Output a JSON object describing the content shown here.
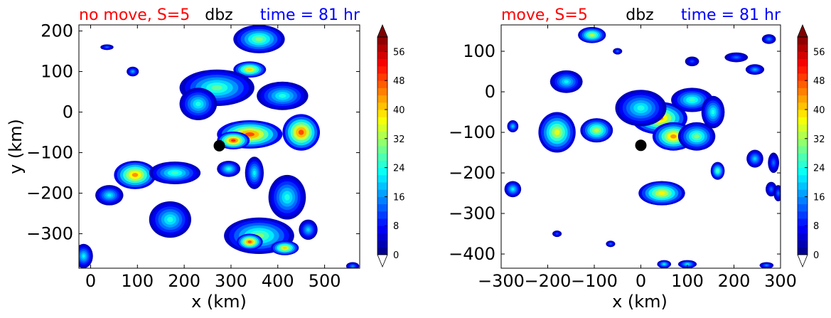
{
  "chart_data": [
    {
      "type": "heatmap",
      "title_left": "no move, S=5",
      "title_center": "dbz",
      "title_right": "time = 81 hr",
      "title_left_color": "#ff0000",
      "title_center_color": "#000000",
      "title_right_color": "#0000ff",
      "xlabel": "x (km)",
      "ylabel": "y (km)",
      "xlim": [
        -25,
        575
      ],
      "ylim": [
        -385,
        215
      ],
      "xticks": [
        0,
        100,
        200,
        300,
        400,
        500
      ],
      "xtick_labels": [
        "0",
        "100",
        "200",
        "300",
        "400",
        "500"
      ],
      "yticks": [
        -300,
        -200,
        -100,
        0,
        100,
        200
      ],
      "ytick_labels": [
        "−300",
        "−200",
        "−100",
        "0",
        "100",
        "200"
      ],
      "marker": {
        "x": 275,
        "y": -83,
        "color": "#000000"
      },
      "cells": [
        {
          "x": 340,
          "y": -55,
          "rx": 70,
          "ry": 35,
          "peak": 48
        },
        {
          "x": 305,
          "y": -70,
          "rx": 35,
          "ry": 22,
          "peak": 50
        },
        {
          "x": 340,
          "y": 105,
          "rx": 35,
          "ry": 20,
          "peak": 40
        },
        {
          "x": 360,
          "y": 180,
          "rx": 55,
          "ry": 35,
          "peak": 30
        },
        {
          "x": 270,
          "y": 60,
          "rx": 80,
          "ry": 45,
          "peak": 28
        },
        {
          "x": 410,
          "y": 40,
          "rx": 55,
          "ry": 35,
          "peak": 24
        },
        {
          "x": 230,
          "y": 20,
          "rx": 40,
          "ry": 40,
          "peak": 24
        },
        {
          "x": 450,
          "y": -50,
          "rx": 40,
          "ry": 45,
          "peak": 48
        },
        {
          "x": 350,
          "y": -150,
          "rx": 20,
          "ry": 40,
          "peak": 22
        },
        {
          "x": 295,
          "y": -140,
          "rx": 25,
          "ry": 20,
          "peak": 24
        },
        {
          "x": 90,
          "y": 100,
          "rx": 13,
          "ry": 12,
          "peak": 18
        },
        {
          "x": 35,
          "y": 160,
          "rx": 14,
          "ry": 7,
          "peak": 14
        },
        {
          "x": 95,
          "y": -155,
          "rx": 45,
          "ry": 35,
          "peak": 44
        },
        {
          "x": 180,
          "y": -150,
          "rx": 55,
          "ry": 28,
          "peak": 26
        },
        {
          "x": 40,
          "y": -205,
          "rx": 30,
          "ry": 25,
          "peak": 22
        },
        {
          "x": 170,
          "y": -265,
          "rx": 45,
          "ry": 45,
          "peak": 24
        },
        {
          "x": 420,
          "y": -210,
          "rx": 40,
          "ry": 55,
          "peak": 24
        },
        {
          "x": 360,
          "y": -305,
          "rx": 75,
          "ry": 45,
          "peak": 30
        },
        {
          "x": 340,
          "y": -320,
          "rx": 28,
          "ry": 20,
          "peak": 48
        },
        {
          "x": 415,
          "y": -335,
          "rx": 30,
          "ry": 18,
          "peak": 40
        },
        {
          "x": 465,
          "y": -290,
          "rx": 20,
          "ry": 25,
          "peak": 20
        },
        {
          "x": -15,
          "y": -355,
          "rx": 20,
          "ry": 30,
          "peak": 22
        },
        {
          "x": 560,
          "y": -380,
          "rx": 14,
          "ry": 10,
          "peak": 16
        }
      ],
      "colorbar": {
        "min": 0,
        "max": 60,
        "step": 2,
        "extend": "both",
        "ticks": [
          "0",
          "8",
          "16",
          "24",
          "32",
          "40",
          "48",
          "56"
        ]
      }
    },
    {
      "type": "heatmap",
      "title_left": "move, S=5",
      "title_center": "dbz",
      "title_right": "time = 81 hr",
      "title_left_color": "#ff0000",
      "title_center_color": "#000000",
      "title_right_color": "#0000ff",
      "xlabel": "x (km)",
      "ylabel": "",
      "xlim": [
        -300,
        300
      ],
      "ylim": [
        -435,
        165
      ],
      "xticks": [
        -300,
        -200,
        -100,
        0,
        100,
        200,
        300
      ],
      "xtick_labels": [
        "−300",
        "−200",
        "−100",
        "0",
        "100",
        "200",
        "300"
      ],
      "yticks": [
        -400,
        -300,
        -200,
        -100,
        0,
        100
      ],
      "ytick_labels": [
        "−400",
        "−300",
        "−200",
        "−100",
        "0",
        "100"
      ],
      "marker": {
        "x": 0,
        "y": -132,
        "color": "#000000"
      },
      "cells": [
        {
          "x": 40,
          "y": -65,
          "rx": 60,
          "ry": 40,
          "peak": 44
        },
        {
          "x": 10,
          "y": -55,
          "rx": 35,
          "ry": 25,
          "peak": 46
        },
        {
          "x": 70,
          "y": -110,
          "rx": 45,
          "ry": 35,
          "peak": 44
        },
        {
          "x": 120,
          "y": -110,
          "rx": 40,
          "ry": 35,
          "peak": 30
        },
        {
          "x": 110,
          "y": -20,
          "rx": 45,
          "ry": 30,
          "peak": 26
        },
        {
          "x": 155,
          "y": -50,
          "rx": 25,
          "ry": 40,
          "peak": 24
        },
        {
          "x": 0,
          "y": -40,
          "rx": 55,
          "ry": 45,
          "peak": 24
        },
        {
          "x": -180,
          "y": -100,
          "rx": 40,
          "ry": 50,
          "peak": 36
        },
        {
          "x": -95,
          "y": -95,
          "rx": 35,
          "ry": 30,
          "peak": 34
        },
        {
          "x": -160,
          "y": 25,
          "rx": 35,
          "ry": 28,
          "peak": 22
        },
        {
          "x": -105,
          "y": 140,
          "rx": 30,
          "ry": 20,
          "peak": 34
        },
        {
          "x": -50,
          "y": 100,
          "rx": 10,
          "ry": 8,
          "peak": 14
        },
        {
          "x": -275,
          "y": -85,
          "rx": 12,
          "ry": 15,
          "peak": 20
        },
        {
          "x": -275,
          "y": -240,
          "rx": 18,
          "ry": 20,
          "peak": 22
        },
        {
          "x": 45,
          "y": -250,
          "rx": 50,
          "ry": 30,
          "peak": 38
        },
        {
          "x": 165,
          "y": -195,
          "rx": 15,
          "ry": 22,
          "peak": 28
        },
        {
          "x": 110,
          "y": 75,
          "rx": 15,
          "ry": 12,
          "peak": 12
        },
        {
          "x": 205,
          "y": 85,
          "rx": 25,
          "ry": 12,
          "peak": 14
        },
        {
          "x": 245,
          "y": 55,
          "rx": 20,
          "ry": 13,
          "peak": 18
        },
        {
          "x": 275,
          "y": 130,
          "rx": 15,
          "ry": 12,
          "peak": 16
        },
        {
          "x": 245,
          "y": -165,
          "rx": 18,
          "ry": 22,
          "peak": 20
        },
        {
          "x": 285,
          "y": -175,
          "rx": 12,
          "ry": 25,
          "peak": 14
        },
        {
          "x": 280,
          "y": -240,
          "rx": 12,
          "ry": 18,
          "peak": 14
        },
        {
          "x": -180,
          "y": -350,
          "rx": 10,
          "ry": 8,
          "peak": 12
        },
        {
          "x": -65,
          "y": -375,
          "rx": 10,
          "ry": 8,
          "peak": 14
        },
        {
          "x": 50,
          "y": -425,
          "rx": 15,
          "ry": 10,
          "peak": 22
        },
        {
          "x": 100,
          "y": -425,
          "rx": 20,
          "ry": 10,
          "peak": 22
        },
        {
          "x": 270,
          "y": -428,
          "rx": 15,
          "ry": 8,
          "peak": 16
        },
        {
          "x": 295,
          "y": -250,
          "rx": 10,
          "ry": 20,
          "peak": 14
        }
      ],
      "colorbar": {
        "min": 0,
        "max": 60,
        "step": 2,
        "extend": "both",
        "ticks": [
          "0",
          "8",
          "16",
          "24",
          "32",
          "40",
          "48",
          "56"
        ]
      }
    }
  ]
}
